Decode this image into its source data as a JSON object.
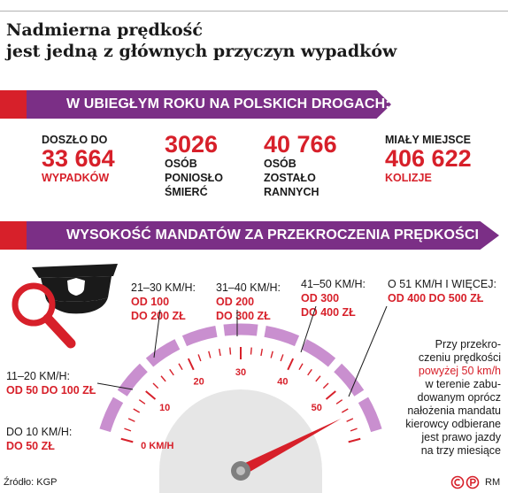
{
  "title": {
    "line1": "Nadmierna prędkość",
    "line2": "jest jedną z głównych przyczyn wypadków"
  },
  "section1": {
    "heading": "W UBIEGŁYM ROKU NA POLSKICH DROGACH:",
    "stats": [
      {
        "pre": "DOSZŁO DO",
        "value": "33 664",
        "post": [
          "WYPADKÓW"
        ],
        "post_red": true
      },
      {
        "pre": "",
        "value": "3026",
        "post": [
          "OSÓB",
          "PONIOSŁO",
          "ŚMIERĆ"
        ],
        "post_red": false
      },
      {
        "pre": "",
        "value": "40 766",
        "post": [
          "OSÓB",
          "ZOSTAŁO",
          "RANNYCH"
        ],
        "post_red": false
      },
      {
        "pre": "MIAŁY MIEJSCE",
        "value": "406 622",
        "post": [
          "KOLIZJE"
        ],
        "post_red": true
      }
    ]
  },
  "section2": {
    "heading": "WYSOKOŚĆ MANDATÓW ZA PRZEKROCZENIA PRĘDKOŚCI"
  },
  "fines": [
    {
      "range": "DO 10 KM/H:",
      "fine": [
        "DO 50 ZŁ"
      ]
    },
    {
      "range": "11–20 KM/H:",
      "fine": [
        "OD 50 DO 100 ZŁ"
      ]
    },
    {
      "range": "21–30 KM/H:",
      "fine": [
        "OD 100",
        "DO 200 ZŁ"
      ]
    },
    {
      "range": "31–40 KM/H:",
      "fine": [
        "OD 200",
        "DO 300 ZŁ"
      ]
    },
    {
      "range": "41–50 KM/H:",
      "fine": [
        "OD 300",
        "DO 400 ZŁ"
      ]
    },
    {
      "range": "O 51 KM/H I WIĘCEJ:",
      "fine": [
        "OD 400 DO 500 ZŁ"
      ]
    }
  ],
  "note": {
    "lines_before": [
      "Przy przekro-",
      "czeniu prędkości"
    ],
    "highlight": "powyżej 50 km/h",
    "lines_after": [
      "w terenie zabu-",
      "dowanym oprócz",
      "nałożenia mandatu",
      "kierowcy odbierane",
      "jest prawo jazdy",
      "na trzy miesiące"
    ]
  },
  "gauge": {
    "labels": [
      "0 KM/H",
      "10",
      "20",
      "30",
      "40",
      "50"
    ],
    "max_value": 60,
    "needle_value": 55,
    "colors": {
      "arc": "#c98fcf",
      "dial": "#e6e6e6",
      "tick": "#d7202a",
      "needle": "#d7202a",
      "hub": "#7f7f7f"
    }
  },
  "colors": {
    "accent": "#d7202a",
    "purple": "#7b2f86",
    "text": "#1a1a1a"
  },
  "source": "Źródło: KGP",
  "credit": {
    "c_icon": "copyright-icon",
    "p_icon": "phonogram-icon",
    "initials": "RM"
  }
}
